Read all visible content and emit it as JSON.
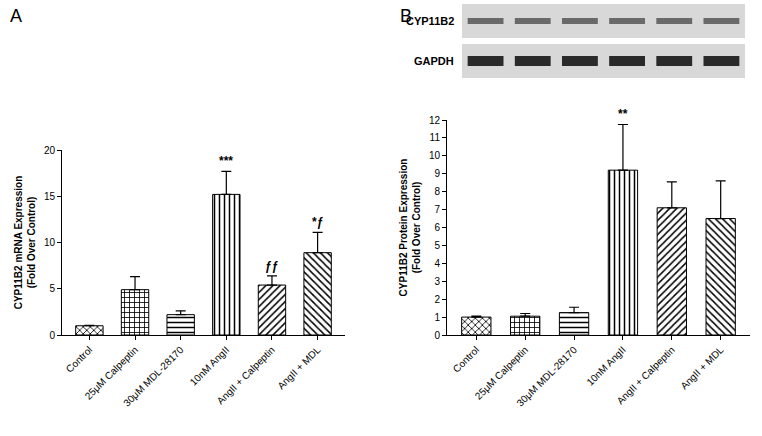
{
  "chart_data": [
    {
      "type": "bar",
      "panel": "A",
      "categories": [
        "Control",
        "25μM Calpeptin",
        "30μM MDL-28170",
        "10nM AngII",
        "AngII + Calpeptin",
        "AngII + MDL"
      ],
      "values": [
        1,
        4.9,
        2.2,
        15.2,
        5.4,
        8.9
      ],
      "errors": [
        0.05,
        1.4,
        0.4,
        2.5,
        1.0,
        2.2
      ],
      "significance": [
        null,
        null,
        null,
        "***",
        "ƒƒ",
        "*ƒ"
      ],
      "y_label": "CYP11B2 mRNA Expression\n(Fold Over Control)",
      "ylim": [
        0,
        20
      ],
      "yticks": [
        0,
        5,
        10,
        15,
        20
      ],
      "color": "#000000",
      "grid": false
    },
    {
      "type": "bar",
      "panel": "B",
      "blot_labels": [
        "CYP11B2",
        "GAPDH"
      ],
      "categories": [
        "Control",
        "25μM Calpeptin",
        "30μM MDL-28170",
        "10nM AngII",
        "AngII + Calpeptin",
        "AngII + MDL"
      ],
      "values": [
        1,
        1.05,
        1.25,
        9.2,
        7.1,
        6.5
      ],
      "errors": [
        0.05,
        0.15,
        0.3,
        2.55,
        1.45,
        2.1
      ],
      "significance": [
        null,
        null,
        null,
        "**",
        null,
        null
      ],
      "y_label": "CYP11B2 Protein Expression\n(Fold Over Control)",
      "ylim": [
        0,
        12
      ],
      "yticks": [
        0,
        1,
        2,
        3,
        4,
        5,
        6,
        7,
        8,
        9,
        10,
        11,
        12
      ],
      "color": "#000000",
      "grid": false
    }
  ]
}
